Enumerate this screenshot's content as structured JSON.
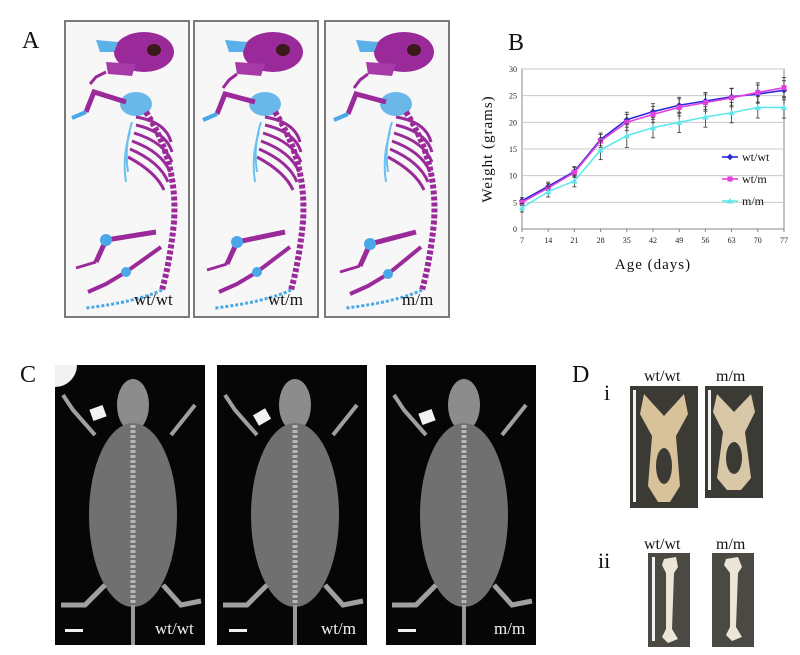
{
  "panels": {
    "a": {
      "letter": "A",
      "genotypes": [
        "wt/wt",
        "wt/m",
        "m/m"
      ]
    },
    "b": {
      "letter": "B"
    },
    "c": {
      "letter": "C",
      "genotypes": [
        "wt/wt",
        "wt/m",
        "m/m"
      ]
    },
    "d": {
      "letter": "D",
      "row_i": {
        "numeral": "i",
        "labels": [
          "wt/wt",
          "m/m"
        ]
      },
      "row_ii": {
        "numeral": "ii",
        "labels": [
          "wt/wt",
          "m/m"
        ]
      }
    }
  },
  "colors": {
    "wt_wt": "#2a2ad8",
    "wt_m": "#e040e0",
    "m_m": "#5ee8ee",
    "skeleton_purple": "#9a2a9a",
    "skeleton_blue": "#4aa8e8"
  },
  "chart_data": {
    "type": "line",
    "xlabel": "Age (days)",
    "ylabel": "Weight (grams)",
    "x": [
      7,
      14,
      21,
      28,
      35,
      42,
      49,
      56,
      63,
      70,
      77
    ],
    "xlim": [
      7,
      77
    ],
    "ylim": [
      0,
      30
    ],
    "yticks": [
      0,
      5,
      10,
      15,
      20,
      25,
      30
    ],
    "grid": "horizontal",
    "legend_position": "right",
    "series": [
      {
        "name": "wt/wt",
        "color": "#2a2ad8",
        "marker": "diamond",
        "values": [
          5.3,
          8.0,
          10.8,
          16.8,
          20.5,
          22.0,
          23.2,
          24.0,
          24.8,
          25.3,
          26.0
        ],
        "errors": [
          0.6,
          0.8,
          0.9,
          1.2,
          1.4,
          1.5,
          1.5,
          1.6,
          1.6,
          1.7,
          1.8
        ]
      },
      {
        "name": "wt/m",
        "color": "#e040e0",
        "marker": "square",
        "values": [
          5.0,
          7.7,
          10.6,
          16.5,
          20.0,
          21.5,
          22.8,
          23.7,
          24.6,
          25.6,
          26.5
        ],
        "errors": [
          0.6,
          0.8,
          0.9,
          1.2,
          1.5,
          1.5,
          1.6,
          1.6,
          1.7,
          1.8,
          1.9
        ]
      },
      {
        "name": "m/m",
        "color": "#5ee8ee",
        "marker": "triangle",
        "values": [
          4.0,
          7.0,
          9.0,
          14.8,
          17.5,
          19.0,
          20.0,
          21.0,
          21.8,
          22.8,
          22.8
        ],
        "errors": [
          0.8,
          1.0,
          1.1,
          1.8,
          2.2,
          1.9,
          1.9,
          1.9,
          1.9,
          2.0,
          2.0
        ]
      }
    ]
  }
}
